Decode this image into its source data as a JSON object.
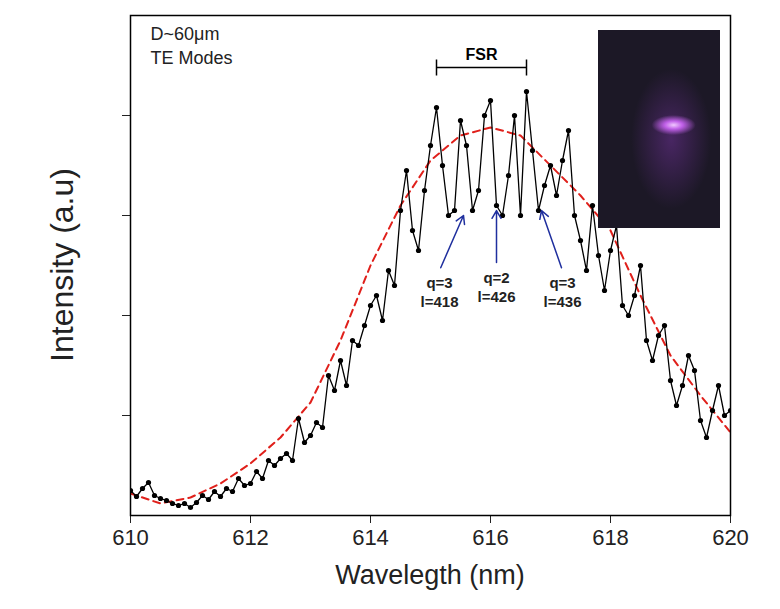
{
  "chart_data": {
    "type": "line",
    "x_label": "Wavelegth (nm)",
    "y_label": "Intensity (a.u)",
    "xlim": [
      610,
      620
    ],
    "xticks": [
      610,
      612,
      614,
      616,
      618,
      620
    ],
    "ylim": [
      0,
      5
    ],
    "yticks": [
      1,
      2,
      3,
      4
    ],
    "tick_labels": "x",
    "grid": false,
    "notes": [
      "D~60μm",
      "TE Modes"
    ],
    "series": [
      {
        "color": "#000000",
        "marker": "circle",
        "line_style": "solid",
        "x": [
          610.0,
          610.1,
          610.2,
          610.3,
          610.4,
          610.5,
          610.6,
          610.7,
          610.8,
          610.9,
          611.0,
          611.1,
          611.2,
          611.3,
          611.4,
          611.5,
          611.6,
          611.7,
          611.8,
          611.9,
          612.0,
          612.1,
          612.2,
          612.3,
          612.4,
          612.5,
          612.6,
          612.7,
          612.8,
          612.9,
          613.0,
          613.1,
          613.2,
          613.3,
          613.4,
          613.5,
          613.6,
          613.7,
          613.8,
          613.9,
          614.0,
          614.1,
          614.2,
          614.3,
          614.4,
          614.5,
          614.6,
          614.7,
          614.8,
          614.9,
          615.0,
          615.1,
          615.2,
          615.3,
          615.4,
          615.5,
          615.6,
          615.7,
          615.8,
          615.9,
          616.0,
          616.1,
          616.2,
          616.3,
          616.4,
          616.5,
          616.6,
          616.7,
          616.8,
          616.9,
          617.0,
          617.1,
          617.2,
          617.3,
          617.4,
          617.5,
          617.6,
          617.7,
          617.8,
          617.9,
          618.0,
          618.1,
          618.2,
          618.3,
          618.4,
          618.5,
          618.6,
          618.7,
          618.8,
          618.9,
          619.0,
          619.1,
          619.2,
          619.3,
          619.4,
          619.5,
          619.6,
          619.7,
          619.8,
          619.9,
          620.0
        ],
        "values": [
          0.25,
          0.19,
          0.27,
          0.33,
          0.2,
          0.17,
          0.15,
          0.12,
          0.1,
          0.12,
          0.08,
          0.13,
          0.2,
          0.16,
          0.24,
          0.19,
          0.27,
          0.24,
          0.37,
          0.3,
          0.32,
          0.44,
          0.37,
          0.55,
          0.5,
          0.57,
          0.62,
          0.55,
          0.97,
          0.73,
          0.8,
          0.93,
          0.88,
          1.4,
          1.25,
          1.55,
          1.3,
          1.75,
          1.7,
          1.9,
          2.1,
          2.2,
          1.95,
          2.45,
          2.3,
          3.05,
          3.45,
          2.85,
          2.65,
          3.25,
          3.7,
          4.08,
          3.5,
          3.0,
          3.05,
          3.95,
          3.7,
          3.05,
          3.25,
          4.0,
          4.15,
          3.1,
          3.0,
          3.4,
          4.0,
          3.0,
          4.24,
          3.65,
          3.05,
          3.3,
          3.5,
          3.2,
          3.55,
          3.85,
          3.0,
          2.75,
          2.45,
          3.1,
          2.6,
          2.25,
          2.65,
          2.9,
          2.1,
          2.0,
          2.2,
          2.5,
          1.75,
          1.55,
          1.8,
          1.9,
          1.35,
          1.1,
          1.3,
          1.6,
          1.45,
          0.95,
          0.78,
          1.05,
          1.3,
          1.0,
          1.05
        ]
      },
      {
        "color": "#e0201b",
        "line_style": "dashed",
        "x": [
          610,
          610.5,
          611,
          611.5,
          612,
          612.5,
          613,
          613.5,
          614,
          614.5,
          615,
          615.5,
          616,
          616.5,
          617,
          617.5,
          618,
          618.5,
          619,
          619.5,
          620
        ],
        "values": [
          0.22,
          0.12,
          0.18,
          0.32,
          0.52,
          0.78,
          1.13,
          1.75,
          2.5,
          3.1,
          3.55,
          3.8,
          3.88,
          3.8,
          3.5,
          3.2,
          2.85,
          2.2,
          1.6,
          1.2,
          0.83
        ]
      }
    ],
    "fsr": {
      "label": "FSR",
      "x1": 615.1,
      "x2": 616.6,
      "y": 4.48
    },
    "annotations": [
      {
        "text": "q=3\nl=418",
        "x": 615.15,
        "y": 2.45,
        "arrow_x": 615.55,
        "arrow_y": 3.0,
        "color": "#1f2f9e"
      },
      {
        "text": "q=2\nl=426",
        "x": 616.1,
        "y": 2.5,
        "arrow_x": 616.1,
        "arrow_y": 3.05,
        "color": "#1f2f9e"
      },
      {
        "text": "q=3\nl=436",
        "x": 617.2,
        "y": 2.45,
        "arrow_x": 616.85,
        "arrow_y": 3.05,
        "color": "#1f2f9e"
      }
    ]
  }
}
